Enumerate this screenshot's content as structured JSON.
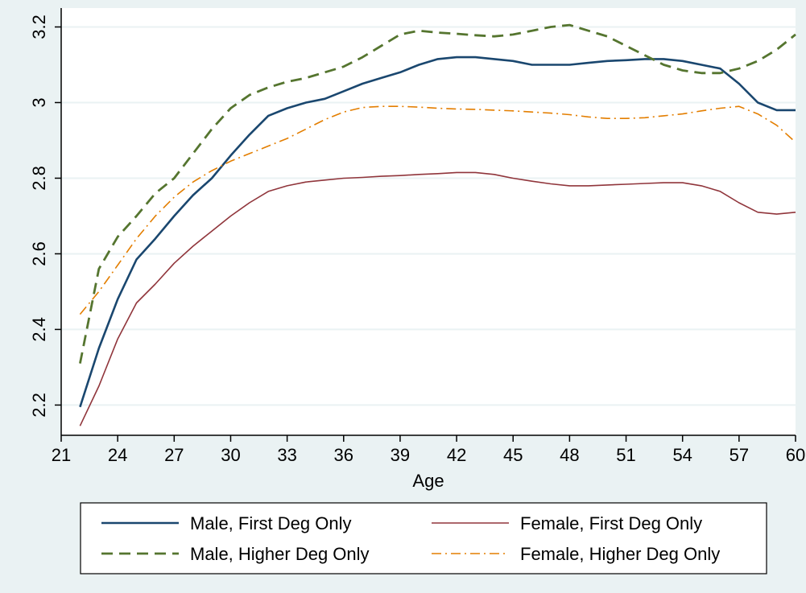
{
  "chart_data": {
    "type": "line",
    "xlabel": "Age",
    "ylabel": "",
    "xlim": [
      21,
      60
    ],
    "ylim": [
      2.12,
      3.25
    ],
    "xticks": [
      21,
      24,
      27,
      30,
      33,
      36,
      39,
      42,
      45,
      48,
      51,
      54,
      57,
      60
    ],
    "yticks": [
      2.2,
      2.4,
      2.6,
      2.8,
      3,
      3.2
    ],
    "ytick_labels": [
      "2.2",
      "2.4",
      "2.6",
      "2.8",
      "3",
      "3.2"
    ],
    "grid": "horizontal",
    "legend_position": "bottom",
    "series": [
      {
        "name": "Male, First Deg Only",
        "color": "#1a476f",
        "style": "solid",
        "x": [
          22,
          23,
          24,
          25,
          26,
          27,
          28,
          29,
          30,
          31,
          32,
          33,
          34,
          35,
          36,
          37,
          38,
          39,
          40,
          41,
          42,
          43,
          44,
          45,
          46,
          47,
          48,
          49,
          50,
          51,
          52,
          53,
          54,
          55,
          56,
          57,
          58,
          59,
          60
        ],
        "y": [
          2.195,
          2.35,
          2.48,
          2.585,
          2.64,
          2.7,
          2.755,
          2.8,
          2.86,
          2.915,
          2.965,
          2.985,
          3.0,
          3.01,
          3.03,
          3.05,
          3.065,
          3.08,
          3.1,
          3.115,
          3.12,
          3.12,
          3.115,
          3.11,
          3.1,
          3.1,
          3.1,
          3.105,
          3.11,
          3.112,
          3.115,
          3.115,
          3.11,
          3.1,
          3.09,
          3.05,
          3.0,
          2.98,
          2.98
        ]
      },
      {
        "name": "Female, First Deg Only",
        "color": "#90353b",
        "style": "solid",
        "x": [
          22,
          23,
          24,
          25,
          26,
          27,
          28,
          29,
          30,
          31,
          32,
          33,
          34,
          35,
          36,
          37,
          38,
          39,
          40,
          41,
          42,
          43,
          44,
          45,
          46,
          47,
          48,
          49,
          50,
          51,
          52,
          53,
          54,
          55,
          56,
          57,
          58,
          59,
          60
        ],
        "y": [
          2.145,
          2.25,
          2.375,
          2.47,
          2.52,
          2.575,
          2.62,
          2.66,
          2.7,
          2.735,
          2.765,
          2.78,
          2.79,
          2.795,
          2.8,
          2.802,
          2.805,
          2.807,
          2.81,
          2.812,
          2.815,
          2.815,
          2.81,
          2.8,
          2.792,
          2.785,
          2.78,
          2.78,
          2.782,
          2.784,
          2.786,
          2.788,
          2.788,
          2.78,
          2.765,
          2.735,
          2.71,
          2.705,
          2.71
        ]
      },
      {
        "name": "Male, Higher Deg Only",
        "color": "#55752f",
        "style": "dashed",
        "x": [
          22,
          23,
          24,
          25,
          26,
          27,
          28,
          29,
          30,
          31,
          32,
          33,
          34,
          35,
          36,
          37,
          38,
          39,
          40,
          41,
          42,
          43,
          44,
          45,
          46,
          47,
          48,
          49,
          50,
          51,
          52,
          53,
          54,
          55,
          56,
          57,
          58,
          59,
          60
        ],
        "y": [
          2.31,
          2.56,
          2.645,
          2.7,
          2.76,
          2.8,
          2.865,
          2.93,
          2.985,
          3.02,
          3.04,
          3.055,
          3.065,
          3.08,
          3.095,
          3.12,
          3.15,
          3.18,
          3.19,
          3.185,
          3.182,
          3.178,
          3.175,
          3.18,
          3.19,
          3.2,
          3.205,
          3.19,
          3.175,
          3.15,
          3.125,
          3.1,
          3.085,
          3.078,
          3.078,
          3.09,
          3.11,
          3.14,
          3.18
        ]
      },
      {
        "name": "Female, Higher Deg Only",
        "color": "#e37e00",
        "style": "dashdot",
        "x": [
          22,
          23,
          24,
          25,
          26,
          27,
          28,
          29,
          30,
          31,
          32,
          33,
          34,
          35,
          36,
          37,
          38,
          39,
          40,
          41,
          42,
          43,
          44,
          45,
          46,
          47,
          48,
          49,
          50,
          51,
          52,
          53,
          54,
          55,
          56,
          57,
          58,
          59,
          60
        ],
        "y": [
          2.44,
          2.5,
          2.57,
          2.64,
          2.7,
          2.75,
          2.79,
          2.82,
          2.845,
          2.865,
          2.885,
          2.905,
          2.93,
          2.955,
          2.975,
          2.987,
          2.99,
          2.99,
          2.988,
          2.985,
          2.983,
          2.982,
          2.98,
          2.978,
          2.975,
          2.972,
          2.968,
          2.962,
          2.958,
          2.958,
          2.96,
          2.965,
          2.97,
          2.978,
          2.985,
          2.99,
          2.97,
          2.94,
          2.895
        ]
      }
    ]
  }
}
